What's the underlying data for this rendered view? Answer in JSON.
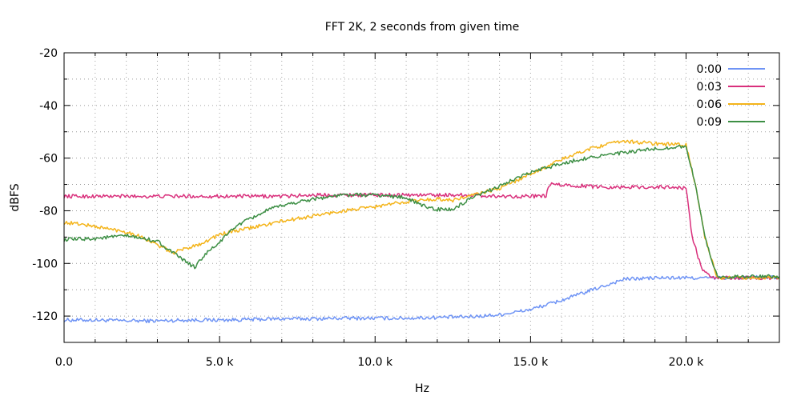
{
  "chart_data": {
    "type": "line",
    "title": "FFT 2K, 2 seconds from given time",
    "xlabel": "Hz",
    "ylabel": "dBFS",
    "xlim": [
      0,
      23000
    ],
    "ylim": [
      -130,
      -20
    ],
    "grid": true,
    "legend_position": "top-right",
    "x_ticks": [
      0,
      5000,
      10000,
      15000,
      20000
    ],
    "x_tick_labels": [
      "0.0",
      "5.0 k",
      "10.0 k",
      "15.0 k",
      "20.0 k"
    ],
    "y_ticks": [
      -20,
      -40,
      -60,
      -80,
      -100,
      -120
    ],
    "y_tick_labels": [
      "-20",
      "-40",
      "-60",
      "-80",
      "-100",
      "-120"
    ],
    "series": [
      {
        "name": "0:00",
        "color": "#6f94f5",
        "x": [
          0,
          1000,
          2000,
          3000,
          4000,
          5000,
          6000,
          7000,
          8000,
          9000,
          10000,
          11000,
          12000,
          13000,
          14000,
          15000,
          16000,
          17000,
          18000,
          19000,
          20000,
          21000,
          22000,
          23000
        ],
        "y": [
          -121.5,
          -121.5,
          -121.8,
          -121.8,
          -121.5,
          -121.5,
          -121.3,
          -121.0,
          -121.0,
          -120.8,
          -120.8,
          -120.8,
          -120.5,
          -120.3,
          -119.5,
          -117.5,
          -114.0,
          -110.0,
          -106.0,
          -105.5,
          -105.5,
          -105.5,
          -105.3,
          -105.3
        ]
      },
      {
        "name": "0:03",
        "color": "#d9307c",
        "x": [
          0,
          1000,
          2000,
          3000,
          4000,
          5000,
          6000,
          7000,
          8000,
          9000,
          10000,
          11000,
          12000,
          13000,
          14000,
          15000,
          15500,
          15600,
          16500,
          17500,
          18500,
          19500,
          20000,
          20200,
          20500,
          20800,
          21500,
          22500,
          23000
        ],
        "y": [
          -74.5,
          -74.5,
          -74.5,
          -74.5,
          -74.5,
          -74.5,
          -74.5,
          -74.5,
          -74.0,
          -74.0,
          -74.0,
          -74.0,
          -74.0,
          -74.0,
          -74.5,
          -74.5,
          -74.5,
          -70.0,
          -70.5,
          -71.0,
          -71.0,
          -71.0,
          -71.5,
          -90.0,
          -102.0,
          -105.5,
          -105.5,
          -105.5,
          -105.5
        ]
      },
      {
        "name": "0:06",
        "color": "#f4b41a",
        "x": [
          0,
          500,
          1000,
          2000,
          2500,
          3000,
          3500,
          4000,
          4500,
          5000,
          6000,
          7000,
          8000,
          9000,
          10000,
          11000,
          12000,
          12500,
          13000,
          14000,
          15000,
          16000,
          17000,
          18000,
          19000,
          20000,
          20300,
          20600,
          21000,
          22000,
          23000
        ],
        "y": [
          -84.5,
          -85.0,
          -86.0,
          -88.0,
          -90.0,
          -93.0,
          -96.0,
          -94.0,
          -92.0,
          -89.0,
          -86.5,
          -84.0,
          -82.0,
          -80.0,
          -78.5,
          -76.5,
          -75.5,
          -76.0,
          -74.5,
          -71.5,
          -66.0,
          -60.5,
          -56.0,
          -53.5,
          -54.5,
          -55.0,
          -70.0,
          -90.0,
          -105.5,
          -105.5,
          -105.5
        ]
      },
      {
        "name": "0:09",
        "color": "#3d8f45",
        "x": [
          0,
          1000,
          2000,
          3000,
          3500,
          4000,
          4200,
          4500,
          5000,
          5500,
          6000,
          6500,
          7000,
          8000,
          9000,
          10000,
          11000,
          11500,
          12000,
          12500,
          13000,
          14000,
          15000,
          16000,
          17000,
          18000,
          19000,
          20000,
          20300,
          20600,
          21000,
          22000,
          23000
        ],
        "y": [
          -91.0,
          -90.5,
          -89.5,
          -91.5,
          -96.0,
          -100.0,
          -101.5,
          -97.0,
          -92.0,
          -86.0,
          -83.0,
          -80.0,
          -78.0,
          -75.5,
          -74.0,
          -74.0,
          -75.0,
          -78.0,
          -79.5,
          -79.5,
          -76.0,
          -70.5,
          -65.5,
          -62.0,
          -59.5,
          -58.0,
          -56.5,
          -55.5,
          -70.0,
          -90.0,
          -105.0,
          -105.0,
          -105.0
        ]
      }
    ]
  }
}
